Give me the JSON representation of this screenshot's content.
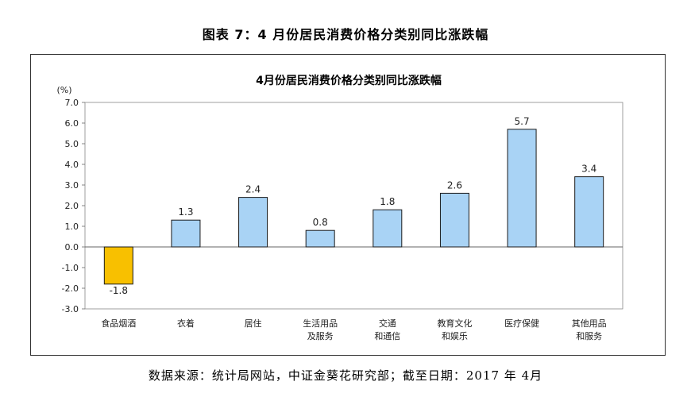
{
  "figure_title": "图表 7：4 月份居民消费价格分类别同比涨跌幅",
  "source_note": "数据来源：统计局网站，中证金葵花研究部；截至日期：2017 年 4月",
  "colors": {
    "positive": "#a9d3f5",
    "negative": "#f8c000",
    "stroke": "#1a1a1a"
  },
  "chart_data": {
    "type": "bar",
    "title": "4月份居民消费价格分类别同比涨跌幅",
    "ylabel": "(%)",
    "ylim": [
      -3.0,
      7.0
    ],
    "yticks": [
      "7.0",
      "6.0",
      "5.0",
      "4.0",
      "3.0",
      "2.0",
      "1.0",
      "0.0",
      "-1.0",
      "-2.0",
      "-3.0"
    ],
    "ytick_values": [
      7,
      6,
      5,
      4,
      3,
      2,
      1,
      0,
      -1,
      -2,
      -3
    ],
    "categories": [
      [
        "食品烟酒"
      ],
      [
        "衣着"
      ],
      [
        "居住"
      ],
      [
        "生活用品",
        "及服务"
      ],
      [
        "交通",
        "和通信"
      ],
      [
        "教育文化",
        "和娱乐"
      ],
      [
        "医疗保健"
      ],
      [
        "其他用品",
        "和服务"
      ]
    ],
    "values": [
      -1.8,
      1.3,
      2.4,
      0.8,
      1.8,
      2.6,
      5.7,
      3.4
    ],
    "data_labels": [
      "-1.8",
      "1.3",
      "2.4",
      "0.8",
      "1.8",
      "2.6",
      "5.7",
      "3.4"
    ],
    "grid": false,
    "legend": "none"
  }
}
